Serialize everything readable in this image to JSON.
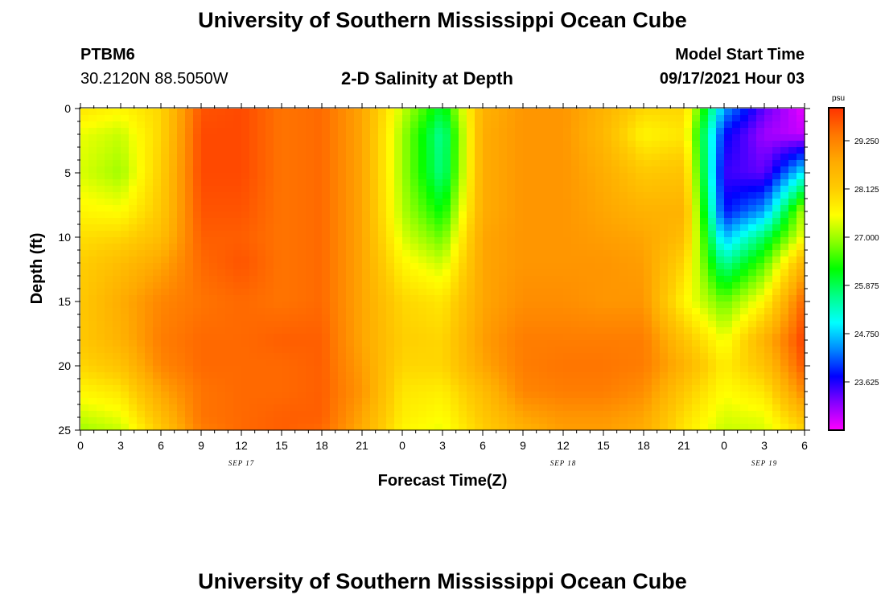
{
  "header": {
    "title": "University of Southern Mississippi Ocean Cube",
    "station": "PTBM6",
    "coords": "30.2120N  88.5050W",
    "plot_title": "2-D Salinity at Depth",
    "model_start_label": "Model Start Time",
    "model_start_value": "09/17/2021 Hour 03"
  },
  "footer": {
    "title": "University of Southern Mississippi Ocean Cube"
  },
  "chart_data": {
    "type": "heatmap",
    "title": "2-D Salinity at Depth",
    "xlabel": "Forecast Time(Z)",
    "ylabel": "Depth (ft)",
    "x_range_hours": [
      0,
      54
    ],
    "y_range_ft": [
      0,
      25
    ],
    "y_inverted": true,
    "x_ticks": [
      "0",
      "3",
      "6",
      "9",
      "12",
      "15",
      "18",
      "21",
      "0",
      "3",
      "6",
      "9",
      "12",
      "15",
      "18",
      "21",
      "0",
      "3",
      "6"
    ],
    "y_ticks": [
      "0",
      "5",
      "10",
      "15",
      "20",
      "25"
    ],
    "date_labels": [
      {
        "label": "SEP 17",
        "hour": 12
      },
      {
        "label": "SEP 18",
        "hour": 36
      },
      {
        "label": "SEP 19",
        "hour": 51
      }
    ],
    "colorbar": {
      "unit": "psu",
      "min": 22.5,
      "max": 30.0,
      "ticks": [
        "29.250",
        "28.125",
        "27.000",
        "25.875",
        "24.750",
        "23.625"
      ],
      "tick_values": [
        29.25,
        28.125,
        27.0,
        25.875,
        24.75,
        23.625
      ],
      "palette": [
        "#ff00ff",
        "#8800ff",
        "#0000ff",
        "#0088ff",
        "#00ffff",
        "#00ff88",
        "#00ff00",
        "#88ff00",
        "#ffff00",
        "#ffcc00",
        "#ffaa00",
        "#ff7700",
        "#ff3300"
      ]
    },
    "salinity_grid_note": "rows: depth 0,2,5,8,10,12,15,18,20,22,24,25 ft; columns: hour 0..54 every 3 h",
    "depths_ft": [
      0,
      2,
      5,
      8,
      10,
      12,
      15,
      18,
      20,
      22,
      24,
      25
    ],
    "hours": [
      0,
      3,
      6,
      9,
      12,
      15,
      18,
      21,
      24,
      27,
      30,
      33,
      36,
      39,
      42,
      45,
      48,
      51,
      54
    ],
    "values_psu": [
      [
        27.8,
        27.6,
        28.0,
        29.7,
        29.8,
        29.4,
        29.5,
        28.8,
        27.2,
        26.0,
        28.6,
        29.0,
        29.0,
        28.6,
        28.0,
        28.0,
        24.5,
        23.3,
        22.6
      ],
      [
        27.4,
        27.2,
        28.0,
        29.8,
        29.8,
        29.4,
        29.5,
        28.8,
        27.0,
        25.5,
        28.7,
        29.0,
        29.0,
        28.5,
        27.6,
        27.8,
        23.8,
        23.0,
        22.8
      ],
      [
        27.3,
        27.0,
        28.1,
        29.8,
        29.8,
        29.4,
        29.5,
        28.8,
        27.0,
        25.6,
        28.7,
        29.0,
        29.0,
        28.7,
        28.2,
        28.3,
        23.5,
        23.3,
        25.0
      ],
      [
        27.6,
        27.5,
        28.2,
        29.7,
        29.7,
        29.4,
        29.5,
        28.8,
        27.1,
        26.2,
        28.7,
        29.0,
        29.0,
        28.8,
        28.6,
        28.6,
        23.8,
        24.5,
        27.2
      ],
      [
        27.9,
        28.0,
        28.4,
        29.6,
        29.6,
        29.4,
        29.5,
        28.8,
        27.3,
        26.7,
        28.8,
        29.0,
        29.0,
        28.9,
        28.8,
        28.4,
        24.6,
        25.8,
        27.5
      ],
      [
        28.1,
        28.4,
        28.8,
        29.5,
        29.7,
        29.4,
        29.5,
        28.8,
        27.6,
        27.2,
        28.8,
        29.0,
        29.0,
        29.0,
        28.9,
        28.0,
        25.5,
        26.6,
        28.6
      ],
      [
        28.2,
        28.7,
        29.2,
        29.4,
        29.5,
        29.4,
        29.5,
        28.8,
        28.0,
        27.8,
        28.8,
        29.1,
        29.1,
        29.0,
        29.0,
        27.6,
        26.7,
        27.6,
        29.6
      ],
      [
        28.2,
        28.6,
        29.3,
        29.5,
        29.5,
        29.6,
        29.6,
        28.8,
        28.1,
        28.0,
        28.9,
        29.3,
        29.3,
        29.3,
        29.3,
        28.3,
        27.4,
        28.6,
        29.9
      ],
      [
        28.0,
        28.3,
        29.2,
        29.5,
        29.5,
        29.5,
        29.6,
        28.9,
        28.0,
        28.0,
        28.8,
        29.3,
        29.4,
        29.4,
        29.3,
        28.6,
        27.7,
        28.3,
        29.7
      ],
      [
        27.6,
        27.8,
        28.8,
        29.4,
        29.5,
        29.5,
        29.6,
        29.0,
        27.8,
        27.7,
        28.4,
        29.2,
        29.3,
        29.3,
        29.1,
        28.2,
        27.5,
        27.8,
        29.2
      ],
      [
        27.2,
        27.4,
        28.4,
        29.4,
        29.5,
        29.6,
        29.6,
        28.8,
        27.7,
        27.5,
        28.2,
        28.8,
        29.0,
        29.0,
        28.8,
        27.9,
        27.3,
        27.4,
        28.4
      ],
      [
        27.0,
        27.2,
        28.2,
        29.3,
        29.5,
        29.6,
        29.5,
        28.7,
        27.6,
        27.4,
        28.1,
        28.6,
        28.9,
        28.9,
        28.7,
        27.8,
        27.2,
        27.3,
        28.0
      ]
    ]
  }
}
